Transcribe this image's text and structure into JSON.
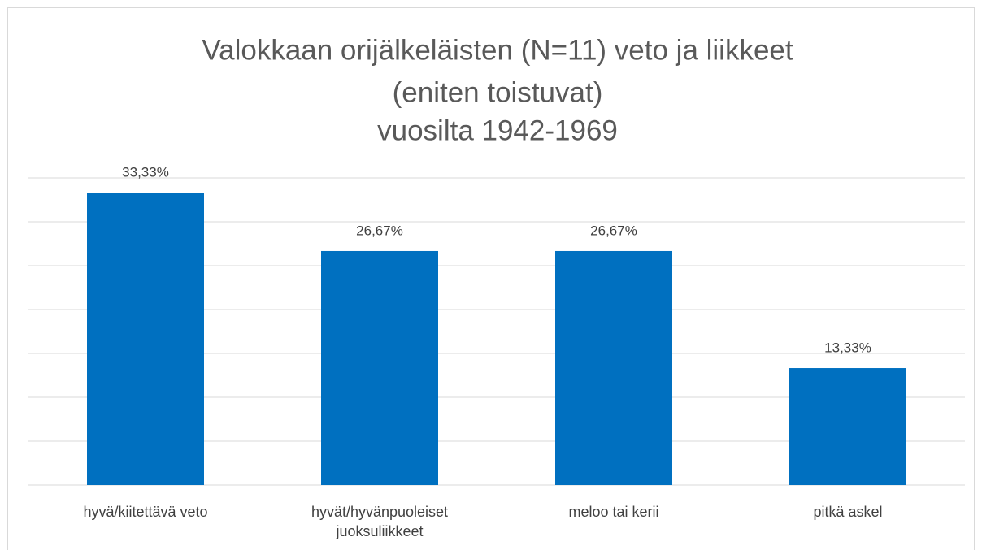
{
  "chart_data": {
    "type": "bar",
    "title": [
      "Valokkaan orijälkeläisten (N=11) veto ja  liikkeet",
      "(eniten toistuvat)",
      "vuosilta 1942-1969"
    ],
    "categories": [
      "hyvä/kiitettävä veto",
      "hyvät/hyvänpuoleiset juoksuliikkeet",
      "meloo tai kerii",
      "pitkä askel"
    ],
    "values": [
      33.33,
      26.67,
      26.67,
      13.33
    ],
    "value_labels": [
      "33,33%",
      "26,67%",
      "26,67%",
      "13,33%"
    ],
    "color": "#0070c0",
    "ylim": [
      0,
      35
    ],
    "yticks": [
      0,
      5,
      10,
      15,
      20,
      25,
      30,
      35
    ],
    "grid": true
  }
}
